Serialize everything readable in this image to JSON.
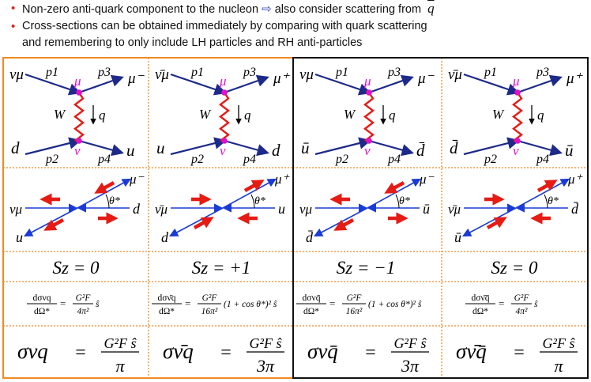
{
  "bullets": {
    "b1_text": "Non-zero anti-quark component to the nucleon",
    "b1_tail": "also consider scattering from",
    "b1_symbol": "q",
    "b2_line1": "Cross-sections can be obtained immediately by comparing with quark scattering",
    "b2_line2": "and remembering to only include LH particles and RH anti-particles"
  },
  "columns": [
    {
      "feynman": {
        "in_top": "νμ",
        "out_top": "μ⁻",
        "in_bot": "d",
        "out_bot": "u",
        "p1": "p1",
        "p2": "p2",
        "p3": "p3",
        "p4": "p4",
        "W": "W",
        "q": "q",
        "v_top": "μ",
        "v_bot": "ν"
      },
      "cm": {
        "in_left": "νμ",
        "in_right": "d",
        "out_up": "μ⁻",
        "out_down": "u",
        "theta": "θ*"
      },
      "sz": "Sz = 0",
      "diff": {
        "lhs_num": "dσνq",
        "lhs_den": "dΩ*",
        "rhs_num": "G²F",
        "rhs_den": "4π²",
        "tail": "ŝ"
      },
      "total": {
        "lhs": "σνq",
        "eq": "=",
        "num": "G²F ŝ",
        "den": "π"
      }
    },
    {
      "feynman": {
        "in_top": "ν̄μ",
        "out_top": "μ⁺",
        "in_bot": "u",
        "out_bot": "d",
        "p1": "p1",
        "p2": "p2",
        "p3": "p3",
        "p4": "p4",
        "W": "W",
        "q": "q",
        "v_top": "μ",
        "v_bot": "ν"
      },
      "cm": {
        "in_left": "ν̄μ",
        "in_right": "u",
        "out_up": "μ⁺",
        "out_down": "d",
        "theta": "θ*"
      },
      "sz": "Sz = +1",
      "diff": {
        "lhs_num": "dσν̄q",
        "lhs_den": "dΩ*",
        "rhs_num": "G²F",
        "rhs_den": "16π²",
        "tail": "(1 + cos θ*)² ŝ"
      },
      "total": {
        "lhs": "σν̄q",
        "eq": "=",
        "num": "G²F ŝ",
        "den": "3π"
      }
    },
    {
      "feynman": {
        "in_top": "νμ",
        "out_top": "μ⁻",
        "in_bot": "ū",
        "out_bot": "d̄",
        "p1": "p1",
        "p2": "p2",
        "p3": "p3",
        "p4": "p4",
        "W": "W",
        "q": "q",
        "v_top": "μ",
        "v_bot": "ν"
      },
      "cm": {
        "in_left": "νμ",
        "in_right": "ū",
        "out_up": "μ⁻",
        "out_down": "d̄",
        "theta": "θ*"
      },
      "sz": "Sz = −1",
      "diff": {
        "lhs_num": "dσνq̄",
        "lhs_den": "dΩ*",
        "rhs_num": "G²F",
        "rhs_den": "16π²",
        "tail": "(1 + cos θ*)² ŝ"
      },
      "total": {
        "lhs": "σνq̄",
        "eq": "=",
        "num": "G²F ŝ",
        "den": "3π"
      }
    },
    {
      "feynman": {
        "in_top": "ν̄μ",
        "out_top": "μ⁺",
        "in_bot": "d̄",
        "out_bot": "ū",
        "p1": "p1",
        "p2": "p2",
        "p3": "p3",
        "p4": "p4",
        "W": "W",
        "q": "q",
        "v_top": "μ",
        "v_bot": "ν"
      },
      "cm": {
        "in_left": "ν̄μ",
        "in_right": "d̄",
        "out_up": "μ⁺",
        "out_down": "ū",
        "theta": "θ*"
      },
      "sz": "Sz = 0",
      "diff": {
        "lhs_num": "dσν̄q̄",
        "lhs_den": "dΩ*",
        "rhs_num": "G²F",
        "rhs_den": "4π²",
        "tail": "ŝ"
      },
      "total": {
        "lhs": "σν̄q̄",
        "eq": "=",
        "num": "G²F ŝ",
        "den": "π"
      }
    }
  ],
  "colors": {
    "orange": "#f08a24",
    "black": "#111111",
    "navy": "#1d2a8a",
    "blue": "#1a3bd6",
    "red": "#e51b14",
    "magenta": "#e010c8"
  }
}
